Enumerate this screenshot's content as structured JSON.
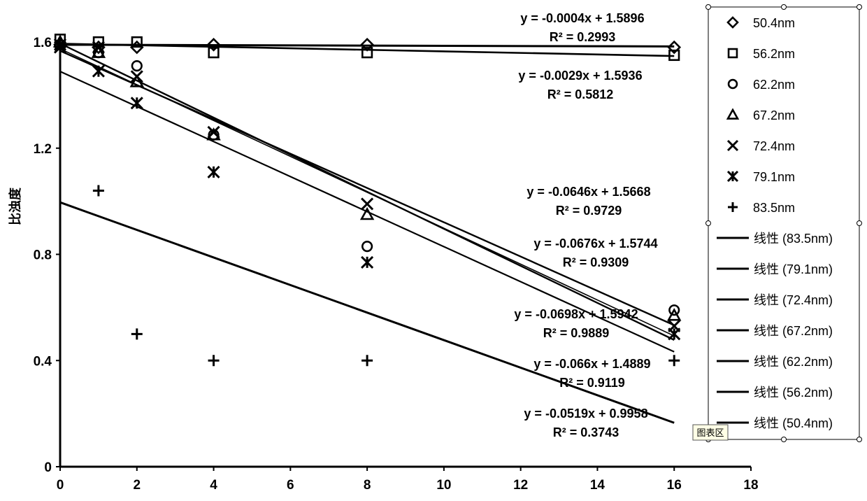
{
  "chart_data": {
    "type": "scatter",
    "title": "",
    "xlabel": "",
    "ylabel": "比浊度",
    "xlim": [
      0,
      18
    ],
    "ylim": [
      0,
      1.6
    ],
    "xticks": [
      "0",
      "2",
      "4",
      "6",
      "8",
      "10",
      "12",
      "14",
      "16",
      "18"
    ],
    "yticks": [
      "0",
      "0.4",
      "0.8",
      "1.2",
      "1.6"
    ],
    "grid": false,
    "legend_position": "right",
    "x": [
      0,
      1,
      2,
      4,
      8,
      16
    ],
    "series": [
      {
        "name": "50.4nm",
        "marker": "diamond",
        "values": [
          1.59,
          1.58,
          1.58,
          1.59,
          1.59,
          1.58
        ]
      },
      {
        "name": "56.2nm",
        "marker": "square",
        "values": [
          1.61,
          1.6,
          1.6,
          1.56,
          1.56,
          1.55
        ]
      },
      {
        "name": "62.2nm",
        "marker": "circle",
        "values": [
          1.59,
          1.56,
          1.51,
          1.25,
          0.83,
          0.59
        ]
      },
      {
        "name": "67.2nm",
        "marker": "triangle",
        "values": [
          1.6,
          1.56,
          1.45,
          1.25,
          0.95,
          0.57
        ]
      },
      {
        "name": "72.4nm",
        "marker": "x",
        "values": [
          1.59,
          1.58,
          1.47,
          1.26,
          0.99,
          0.53
        ]
      },
      {
        "name": "79.1nm",
        "marker": "asterisk",
        "values": [
          1.58,
          1.49,
          1.37,
          1.11,
          0.77,
          0.5
        ]
      },
      {
        "name": "83.5nm",
        "marker": "plus",
        "values": [
          1.58,
          1.04,
          0.5,
          0.4,
          0.4,
          0.4
        ]
      }
    ],
    "trendlines": [
      {
        "name": "线性 (83.5nm)",
        "slope": -0.0519,
        "intercept": 0.9958,
        "equation": "y = -0.0519x + 0.9958",
        "r2": "R² = 0.3743"
      },
      {
        "name": "线性 (79.1nm)",
        "slope": -0.066,
        "intercept": 1.4889,
        "equation": "y = -0.066x + 1.4889",
        "r2": "R² = 0.9119"
      },
      {
        "name": "线性 (72.4nm)",
        "slope": -0.0698,
        "intercept": 1.5942,
        "equation": "y = -0.0698x + 1.5942",
        "r2": "R² = 0.9889"
      },
      {
        "name": "线性 (67.2nm)",
        "slope": -0.0676,
        "intercept": 1.5744,
        "equation": "y = -0.0676x + 1.5744",
        "r2": "R² = 0.9309"
      },
      {
        "name": "线性 (62.2nm)",
        "slope": -0.0646,
        "intercept": 1.5668,
        "equation": "y = -0.0646x + 1.5668",
        "r2": "R² = 0.9729"
      },
      {
        "name": "线性 (56.2nm)",
        "slope": -0.0029,
        "intercept": 1.5936,
        "equation": "y = -0.0029x + 1.5936",
        "r2": "R² = 0.5812"
      },
      {
        "name": "线性 (50.4nm)",
        "slope": -0.0004,
        "intercept": 1.5896,
        "equation": "y = -0.0004x + 1.5896",
        "r2": "R² = 0.2993"
      }
    ]
  },
  "tooltip": "图表区",
  "colors": {
    "ink": "#000000",
    "background": "#ffffff"
  }
}
